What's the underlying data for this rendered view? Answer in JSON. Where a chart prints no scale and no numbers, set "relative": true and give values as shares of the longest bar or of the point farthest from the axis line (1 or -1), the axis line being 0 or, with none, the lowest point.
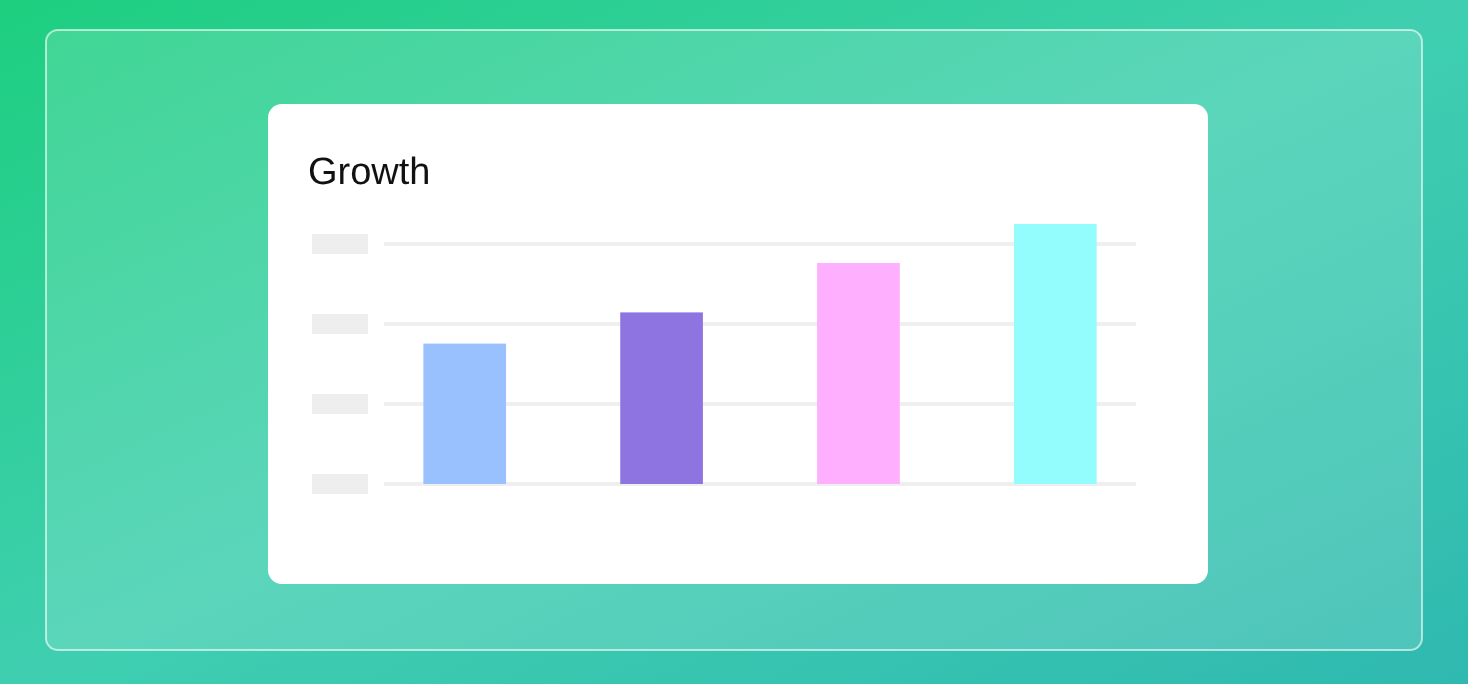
{
  "chart_data": {
    "type": "bar",
    "title": "Growth",
    "relative": true,
    "categories": [
      null,
      null,
      null,
      null
    ],
    "values": [
      0.54,
      0.66,
      0.85,
      1
    ],
    "colors": [
      "#99c1fe",
      "#8e74e0",
      "#feaffd",
      "#93fcfc"
    ],
    "grid": "y"
  }
}
